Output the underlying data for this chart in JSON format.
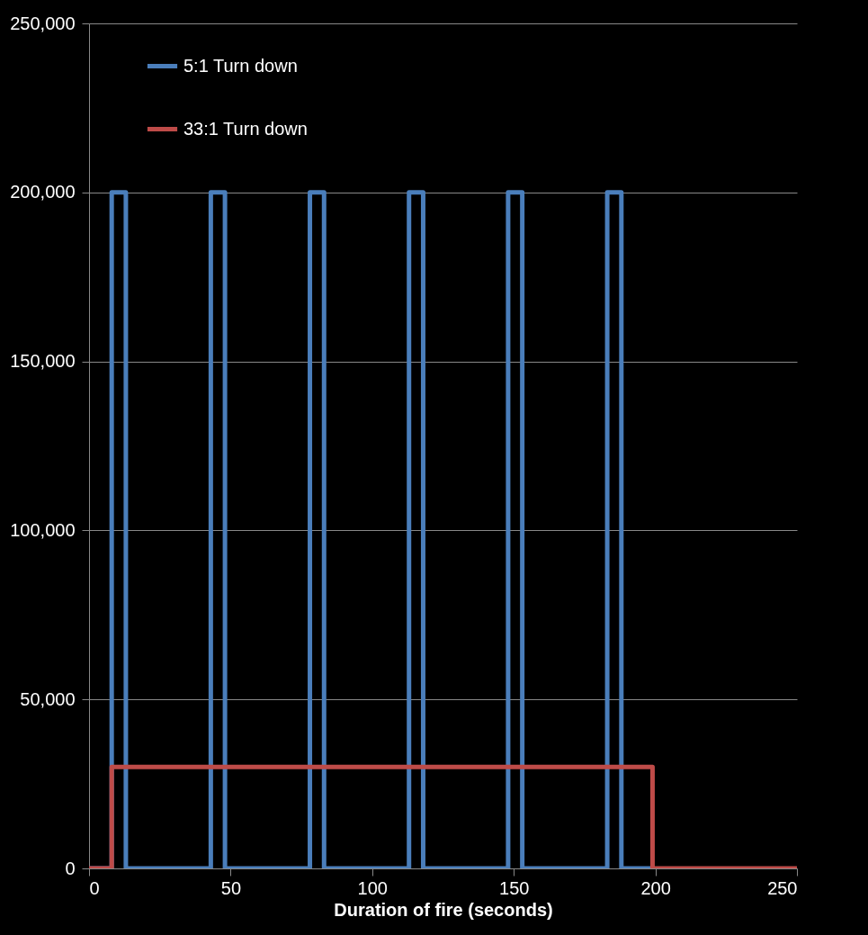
{
  "chart_data": {
    "type": "line",
    "xlabel": "Duration of fire (seconds)",
    "xlim": [
      0,
      250
    ],
    "xticks": [
      0,
      50,
      100,
      150,
      200,
      250
    ],
    "ylim": [
      0,
      250000
    ],
    "yticks": [
      {
        "value": 0,
        "label": "0"
      },
      {
        "value": 50000,
        "label": "50,000"
      },
      {
        "value": 100000,
        "label": "100,000"
      },
      {
        "value": 150000,
        "label": "150,000"
      },
      {
        "value": 200000,
        "label": "200,000"
      },
      {
        "value": 250000,
        "label": "250,000"
      }
    ],
    "grid": "y",
    "legend": "top left",
    "series": [
      {
        "name": "5:1 Turn down",
        "color": "#4a7ebb",
        "x": [
          0,
          8,
          8,
          13,
          13,
          43,
          43,
          48,
          48,
          78,
          78,
          83,
          83,
          113,
          113,
          118,
          118,
          148,
          148,
          153,
          153,
          183,
          183,
          188,
          188,
          199
        ],
        "values": [
          0,
          0,
          200000,
          200000,
          0,
          0,
          200000,
          200000,
          0,
          0,
          200000,
          200000,
          0,
          0,
          200000,
          200000,
          0,
          0,
          200000,
          200000,
          0,
          0,
          200000,
          200000,
          0,
          0
        ]
      },
      {
        "name": "33:1 Turn down",
        "color": "#be4b48",
        "x": [
          0,
          8,
          8,
          199,
          199,
          250
        ],
        "values": [
          0,
          0,
          30000,
          30000,
          0,
          0
        ]
      }
    ]
  }
}
